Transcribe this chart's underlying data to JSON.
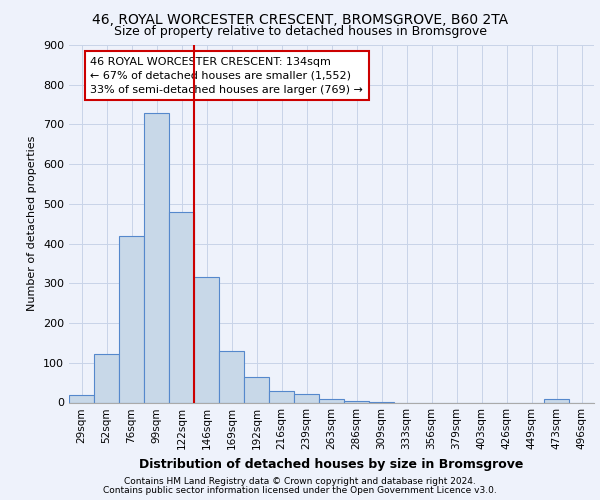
{
  "title_line1": "46, ROYAL WORCESTER CRESCENT, BROMSGROVE, B60 2TA",
  "title_line2": "Size of property relative to detached houses in Bromsgrove",
  "xlabel": "Distribution of detached houses by size in Bromsgrove",
  "ylabel": "Number of detached properties",
  "categories": [
    "29sqm",
    "52sqm",
    "76sqm",
    "99sqm",
    "122sqm",
    "146sqm",
    "169sqm",
    "192sqm",
    "216sqm",
    "239sqm",
    "263sqm",
    "286sqm",
    "309sqm",
    "333sqm",
    "356sqm",
    "379sqm",
    "403sqm",
    "426sqm",
    "449sqm",
    "473sqm",
    "496sqm"
  ],
  "values": [
    18,
    122,
    418,
    730,
    480,
    315,
    130,
    63,
    28,
    22,
    10,
    5,
    2,
    0,
    0,
    0,
    0,
    0,
    0,
    8,
    0
  ],
  "bar_color": "#c8d8e8",
  "bar_edge_color": "#5588cc",
  "vline_color": "#cc0000",
  "annotation_text": "46 ROYAL WORCESTER CRESCENT: 134sqm\n← 67% of detached houses are smaller (1,552)\n33% of semi-detached houses are larger (769) →",
  "annotation_box_color": "#ffffff",
  "annotation_box_edge": "#cc0000",
  "ylim": [
    0,
    900
  ],
  "yticks": [
    0,
    100,
    200,
    300,
    400,
    500,
    600,
    700,
    800,
    900
  ],
  "grid_color": "#c8d4e8",
  "footer_line1": "Contains HM Land Registry data © Crown copyright and database right 2024.",
  "footer_line2": "Contains public sector information licensed under the Open Government Licence v3.0.",
  "bg_color": "#eef2fb"
}
